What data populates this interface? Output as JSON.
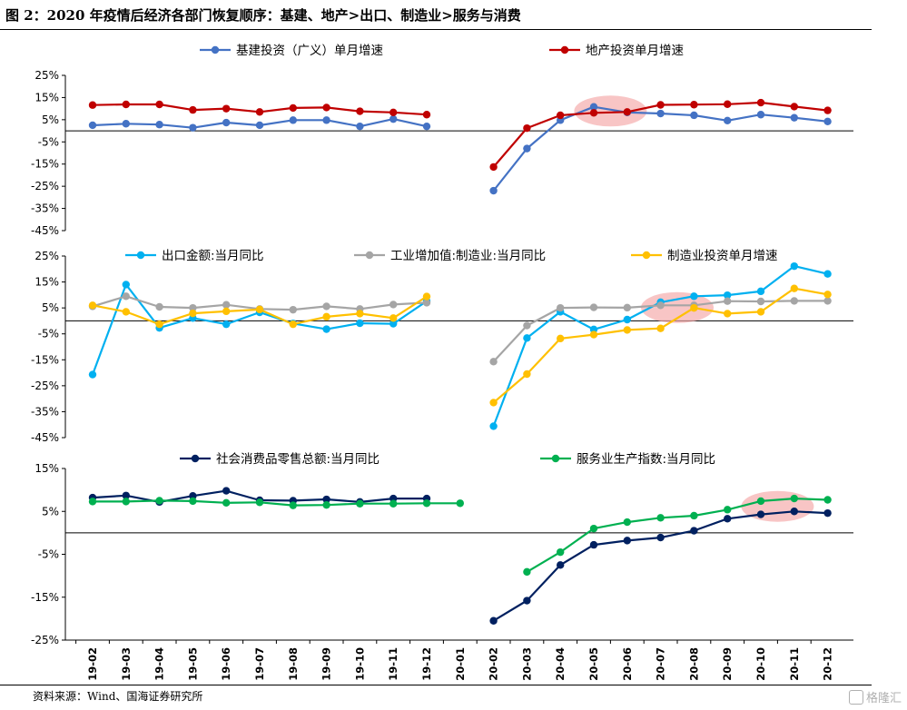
{
  "figure_title": "图 2：2020 年疫情后经济各部门恢复顺序：基建、地产>出口、制造业>服务与消费",
  "source": "资料来源：Wind、国海证券研究所",
  "watermark": "格隆汇",
  "chart_data": [
    {
      "type": "line",
      "title": "",
      "xlabel": "",
      "ylabel": "",
      "x": [
        "19-02",
        "19-03",
        "19-04",
        "19-05",
        "19-06",
        "19-07",
        "19-08",
        "19-09",
        "19-10",
        "19-11",
        "19-12",
        "20-01",
        "20-02",
        "20-03",
        "20-04",
        "20-05",
        "20-06",
        "20-07",
        "20-08",
        "20-09",
        "20-10",
        "20-11",
        "20-12"
      ],
      "yticks": [
        "25%",
        "15%",
        "5%",
        "-5%",
        "-15%",
        "-25%",
        "-35%",
        "-45%"
      ],
      "ylim": [
        -45,
        25
      ],
      "grid": false,
      "legend": "top",
      "highlight": {
        "from": "20-05",
        "to": "20-06"
      },
      "series": [
        {
          "name": "基建投资（广义）单月增速",
          "color": "#4472c4",
          "values": [
            2.5,
            3.2,
            2.8,
            1.4,
            3.7,
            2.5,
            4.8,
            4.8,
            2.0,
            5.3,
            2.0,
            null,
            -27.0,
            -8.0,
            4.8,
            10.8,
            8.3,
            7.8,
            7.0,
            4.6,
            7.3,
            5.9,
            4.2
          ]
        },
        {
          "name": "地产投资单月增速",
          "color": "#c00000",
          "values": [
            11.6,
            11.9,
            11.9,
            9.4,
            10.0,
            8.5,
            10.3,
            10.5,
            8.8,
            8.3,
            7.3,
            null,
            -16.3,
            1.2,
            7.0,
            8.1,
            8.5,
            11.7,
            11.8,
            12.0,
            12.7,
            10.9,
            9.2
          ]
        }
      ]
    },
    {
      "type": "line",
      "title": "",
      "xlabel": "",
      "ylabel": "",
      "x": [
        "19-02",
        "19-03",
        "19-04",
        "19-05",
        "19-06",
        "19-07",
        "19-08",
        "19-09",
        "19-10",
        "19-11",
        "19-12",
        "20-01",
        "20-02",
        "20-03",
        "20-04",
        "20-05",
        "20-06",
        "20-07",
        "20-08",
        "20-09",
        "20-10",
        "20-11",
        "20-12"
      ],
      "yticks": [
        "25%",
        "15%",
        "5%",
        "-5%",
        "-15%",
        "-25%",
        "-35%",
        "-45%"
      ],
      "ylim": [
        -45,
        25
      ],
      "grid": false,
      "legend": "top",
      "highlight": {
        "from": "20-07",
        "to": "20-08"
      },
      "series": [
        {
          "name": "出口金额:当月同比",
          "color": "#00b0f0",
          "values": [
            -20.7,
            14.0,
            -2.7,
            1.1,
            -1.3,
            3.3,
            -1.0,
            -3.2,
            -0.9,
            -1.1,
            7.6,
            null,
            -40.6,
            -6.6,
            3.5,
            -3.3,
            0.5,
            7.2,
            9.5,
            9.9,
            11.4,
            21.1,
            18.1
          ]
        },
        {
          "name": "工业增加值:制造业:当月同比",
          "color": "#a5a5a5",
          "values": [
            5.6,
            9.5,
            5.4,
            5.0,
            6.2,
            4.6,
            4.3,
            5.6,
            4.6,
            6.3,
            7.0,
            null,
            -15.7,
            -1.8,
            5.0,
            5.2,
            5.1,
            6.0,
            6.0,
            7.6,
            7.5,
            7.7,
            7.7
          ]
        },
        {
          "name": "制造业投资单月增速",
          "color": "#ffc000",
          "values": [
            6.0,
            3.5,
            -1.3,
            2.9,
            3.7,
            4.4,
            -1.3,
            1.6,
            2.8,
            1.1,
            9.4,
            null,
            -31.5,
            -20.5,
            -6.8,
            -5.3,
            -3.5,
            -2.9,
            5.0,
            2.8,
            3.5,
            12.5,
            10.2
          ]
        }
      ]
    },
    {
      "type": "line",
      "title": "",
      "xlabel": "",
      "ylabel": "",
      "x": [
        "19-02",
        "19-03",
        "19-04",
        "19-05",
        "19-06",
        "19-07",
        "19-08",
        "19-09",
        "19-10",
        "19-11",
        "19-12",
        "20-01",
        "20-02",
        "20-03",
        "20-04",
        "20-05",
        "20-06",
        "20-07",
        "20-08",
        "20-09",
        "20-10",
        "20-11",
        "20-12"
      ],
      "xtick_labels_shown": true,
      "yticks": [
        "15%",
        "5%",
        "-5%",
        "-15%",
        "-25%"
      ],
      "ylim": [
        -25,
        15
      ],
      "grid": false,
      "legend": "top",
      "highlight": {
        "from": "20-10",
        "to": "20-11"
      },
      "series": [
        {
          "name": "社会消费品零售总额:当月同比",
          "color": "#002060",
          "values": [
            8.2,
            8.7,
            7.2,
            8.6,
            9.8,
            7.6,
            7.5,
            7.8,
            7.2,
            8.0,
            8.0,
            null,
            -20.5,
            -15.8,
            -7.5,
            -2.8,
            -1.8,
            -1.1,
            0.5,
            3.3,
            4.3,
            5.0,
            4.6
          ]
        },
        {
          "name": "服务业生产指数:当月同比",
          "color": "#00b050",
          "values": [
            7.3,
            7.3,
            7.5,
            7.4,
            7.0,
            7.1,
            6.4,
            6.5,
            6.8,
            6.8,
            6.9,
            6.9,
            null,
            -9.1,
            -4.5,
            1.0,
            2.5,
            3.5,
            4.0,
            5.4,
            7.4,
            8.0,
            7.7
          ]
        }
      ]
    }
  ]
}
